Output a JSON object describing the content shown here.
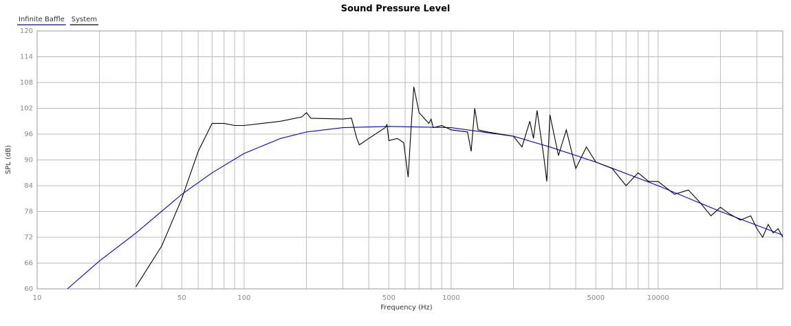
{
  "chart_data": {
    "type": "line",
    "title": "Sound Pressure Level",
    "xlabel": "Frequency (Hz)",
    "ylabel": "SPL (dB)",
    "xscale": "log",
    "xlim": [
      10,
      40000
    ],
    "ylim": [
      60,
      120
    ],
    "xticks": [
      10,
      50,
      100,
      500,
      1000,
      5000,
      10000
    ],
    "xminor": [
      20,
      30,
      40,
      60,
      70,
      80,
      90,
      200,
      300,
      400,
      600,
      700,
      800,
      900,
      2000,
      3000,
      4000,
      6000,
      7000,
      8000,
      9000,
      20000,
      30000
    ],
    "yticks": [
      60,
      66,
      72,
      78,
      84,
      90,
      96,
      102,
      108,
      114,
      120
    ],
    "grid": true,
    "legend": "top-left",
    "series": [
      {
        "name": "Infinite Baffle",
        "color": "#0000cc",
        "x": [
          14,
          20,
          30,
          50,
          70,
          100,
          150,
          200,
          300,
          500,
          1000,
          2000,
          3000,
          5000,
          10000,
          20000,
          40000
        ],
        "values": [
          60,
          66.5,
          73,
          82,
          87,
          91.5,
          95,
          96.5,
          97.5,
          97.8,
          97.5,
          95.5,
          93,
          89.5,
          84,
          78,
          72.5
        ]
      },
      {
        "name": "System",
        "color": "#000000",
        "x": [
          30,
          40,
          50,
          60,
          70,
          80,
          90,
          100,
          150,
          190,
          200,
          210,
          300,
          330,
          350,
          360,
          400,
          480,
          490,
          500,
          550,
          590,
          620,
          640,
          660,
          700,
          780,
          800,
          820,
          900,
          1000,
          1200,
          1250,
          1300,
          1350,
          1500,
          2000,
          2200,
          2400,
          2500,
          2600,
          2800,
          2900,
          3000,
          3300,
          3600,
          4000,
          4500,
          5000,
          6000,
          7000,
          8000,
          9000,
          10000,
          12000,
          14000,
          16000,
          18000,
          20000,
          22000,
          25000,
          28000,
          30000,
          32000,
          34000,
          36000,
          38000,
          40000
        ],
        "values": [
          60.5,
          70,
          81,
          92,
          98.5,
          98.5,
          98,
          98,
          99,
          100,
          101,
          99.7,
          99.5,
          99.7,
          95,
          93.5,
          95,
          97.5,
          98.2,
          94.5,
          95,
          94,
          86,
          97,
          107,
          101,
          98.5,
          99.5,
          97.5,
          98,
          97,
          96.5,
          92,
          102,
          97,
          96.5,
          95.5,
          93,
          99,
          95,
          101.5,
          91,
          85,
          100.5,
          91,
          97,
          88,
          93,
          89.5,
          88,
          84,
          87,
          85,
          85,
          82,
          83,
          80,
          77,
          79,
          77.5,
          76,
          77,
          74,
          72,
          75,
          73,
          74,
          72
        ]
      }
    ]
  }
}
